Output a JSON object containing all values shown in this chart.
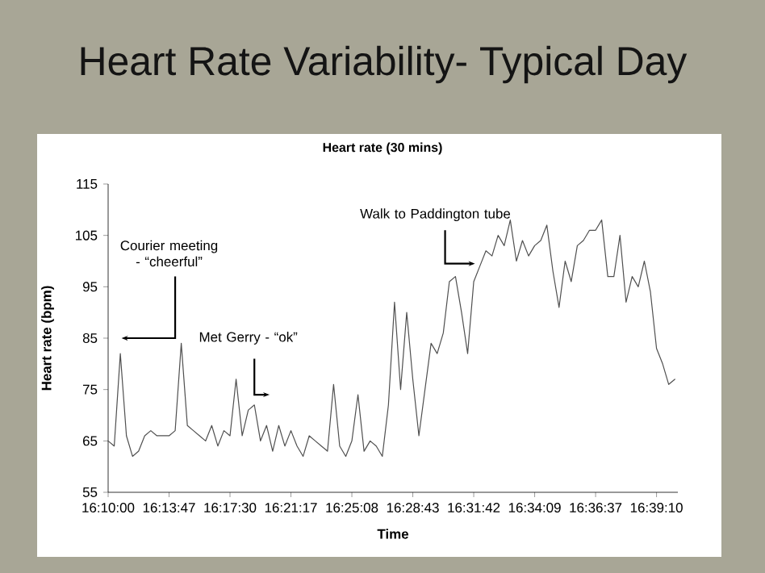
{
  "chart_data": {
    "type": "line",
    "title": "Heart Rate Variability- Typical Day",
    "subtitle": "Heart rate (30 mins)",
    "xlabel": "Time",
    "ylabel": "Heart rate (bpm)",
    "categories": [
      "16:10:00",
      null,
      null,
      null,
      null,
      null,
      null,
      null,
      null,
      null,
      "16:13:47",
      null,
      null,
      null,
      null,
      null,
      null,
      null,
      null,
      null,
      "16:17:30",
      null,
      null,
      null,
      null,
      null,
      null,
      null,
      null,
      null,
      "16:21:17",
      null,
      null,
      null,
      null,
      null,
      null,
      null,
      null,
      null,
      "16:25:08",
      null,
      null,
      null,
      null,
      null,
      null,
      null,
      null,
      null,
      "16:28:43",
      null,
      null,
      null,
      null,
      null,
      null,
      null,
      null,
      null,
      "16:31:42",
      null,
      null,
      null,
      null,
      null,
      null,
      null,
      null,
      null,
      "16:34:09",
      null,
      null,
      null,
      null,
      null,
      null,
      null,
      null,
      null,
      "16:36:37",
      null,
      null,
      null,
      null,
      null,
      null,
      null,
      null,
      null,
      "16:39:10",
      null,
      null,
      null
    ],
    "ylim": [
      55,
      115
    ],
    "yticks": [
      55,
      65,
      75,
      85,
      95,
      105,
      115
    ],
    "grid": false,
    "marker": "none",
    "line_style": "solid",
    "series": [
      {
        "color": "#505050",
        "values": [
          65,
          64,
          82,
          66,
          62,
          63,
          66,
          67,
          66,
          66,
          66,
          67,
          84,
          68,
          67,
          66,
          65,
          68,
          64,
          67,
          66,
          77,
          66,
          71,
          72,
          65,
          68,
          63,
          68,
          64,
          67,
          64,
          62,
          66,
          65,
          64,
          63,
          76,
          64,
          62,
          65,
          74,
          63,
          65,
          64,
          62,
          72,
          92,
          75,
          90,
          77,
          66,
          75,
          84,
          82,
          86,
          96,
          97,
          90,
          82,
          96,
          99,
          102,
          101,
          105,
          103,
          108,
          100,
          104,
          101,
          103,
          104,
          107,
          98,
          91,
          100,
          96,
          103,
          104,
          106,
          106,
          108,
          97,
          97,
          105,
          92,
          97,
          95,
          100,
          94,
          83,
          80,
          76,
          77
        ]
      }
    ],
    "annotations": [
      "Courier meeting - “cheerful”",
      "Met Gerry - “ok”",
      "Walk to Paddington tube"
    ]
  }
}
